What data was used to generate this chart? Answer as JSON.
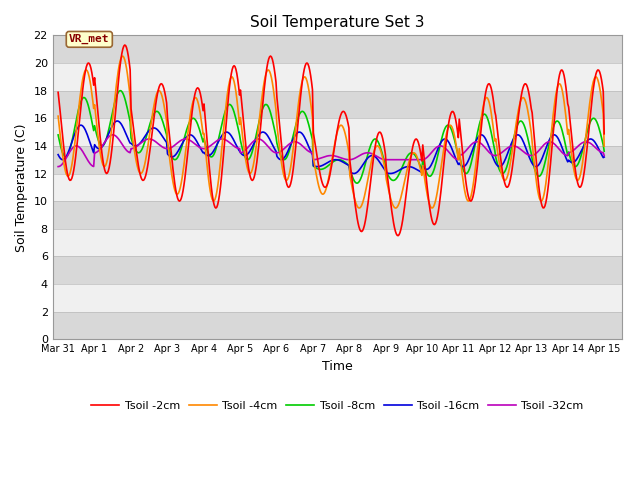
{
  "title": "Soil Temperature Set 3",
  "xlabel": "Time",
  "ylabel": "Soil Temperature (C)",
  "ylim": [
    0,
    22
  ],
  "yticks": [
    0,
    2,
    4,
    6,
    8,
    10,
    12,
    14,
    16,
    18,
    20,
    22
  ],
  "xlim_days": [
    -0.15,
    15.5
  ],
  "xtick_labels": [
    "Mar 31",
    "Apr 1",
    "Apr 2",
    "Apr 3",
    "Apr 4",
    "Apr 5",
    "Apr 6",
    "Apr 7",
    "Apr 8",
    "Apr 9",
    "Apr 10",
    "Apr 11",
    "Apr 12",
    "Apr 13",
    "Apr 14",
    "Apr 15"
  ],
  "xtick_positions": [
    0,
    1,
    2,
    3,
    4,
    5,
    6,
    7,
    8,
    9,
    10,
    11,
    12,
    13,
    14,
    15
  ],
  "annotation_text": "VR_met",
  "annotation_box_facecolor": "#FFFFCC",
  "annotation_box_edgecolor": "#996633",
  "annotation_text_color": "#880000",
  "fig_facecolor": "#FFFFFF",
  "plot_bg_color": "#D8D8D8",
  "band_white_color": "#F0F0F0",
  "gridline_color": "#BBBBBB",
  "series": [
    {
      "label": "Tsoil -2cm",
      "color": "#FF0000",
      "linewidth": 1.2
    },
    {
      "label": "Tsoil -4cm",
      "color": "#FF8800",
      "linewidth": 1.2
    },
    {
      "label": "Tsoil -8cm",
      "color": "#00CC00",
      "linewidth": 1.2
    },
    {
      "label": "Tsoil -16cm",
      "color": "#0000DD",
      "linewidth": 1.2
    },
    {
      "label": "Tsoil -32cm",
      "color": "#BB00BB",
      "linewidth": 1.2
    }
  ],
  "title_fontsize": 11,
  "axis_label_fontsize": 9,
  "tick_fontsize": 8,
  "legend_fontsize": 8
}
